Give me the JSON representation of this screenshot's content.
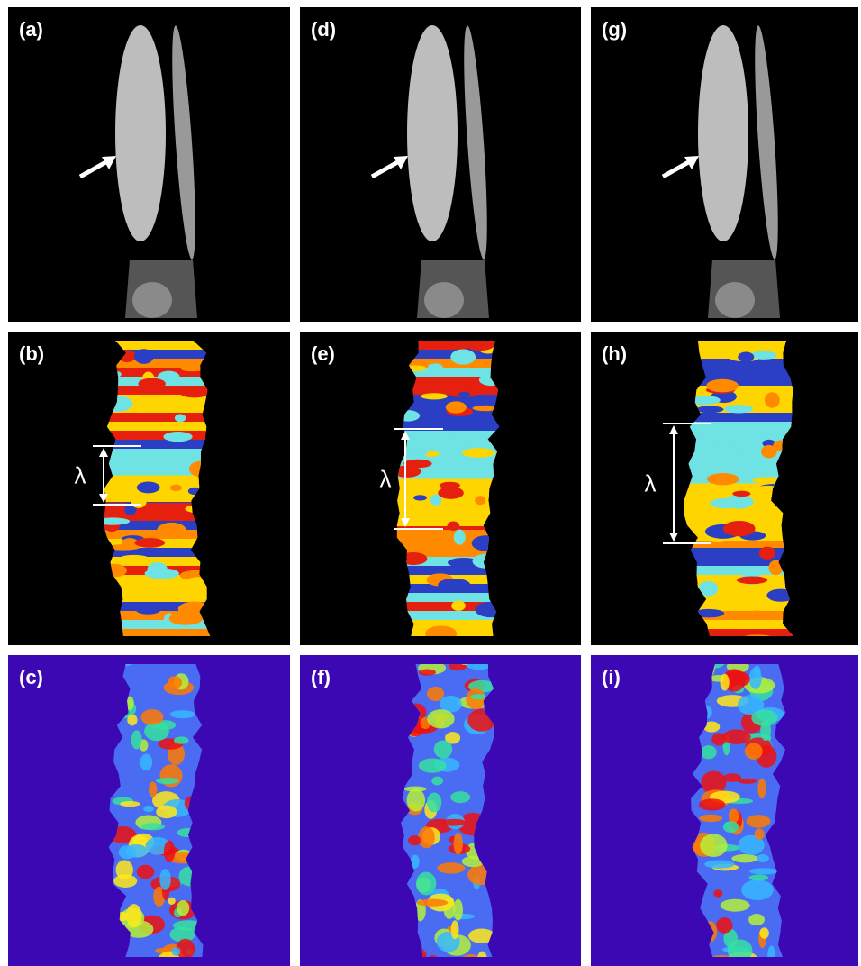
{
  "panels": [
    {
      "label": "(a)"
    },
    {
      "label": "(b)",
      "lambda": "λ"
    },
    {
      "label": "(c)"
    },
    {
      "label": "(d)"
    },
    {
      "label": "(e)",
      "lambda": "λ"
    },
    {
      "label": "(f)"
    },
    {
      "label": "(g)"
    },
    {
      "label": "(h)",
      "lambda": "λ"
    },
    {
      "label": "(i)"
    }
  ]
}
